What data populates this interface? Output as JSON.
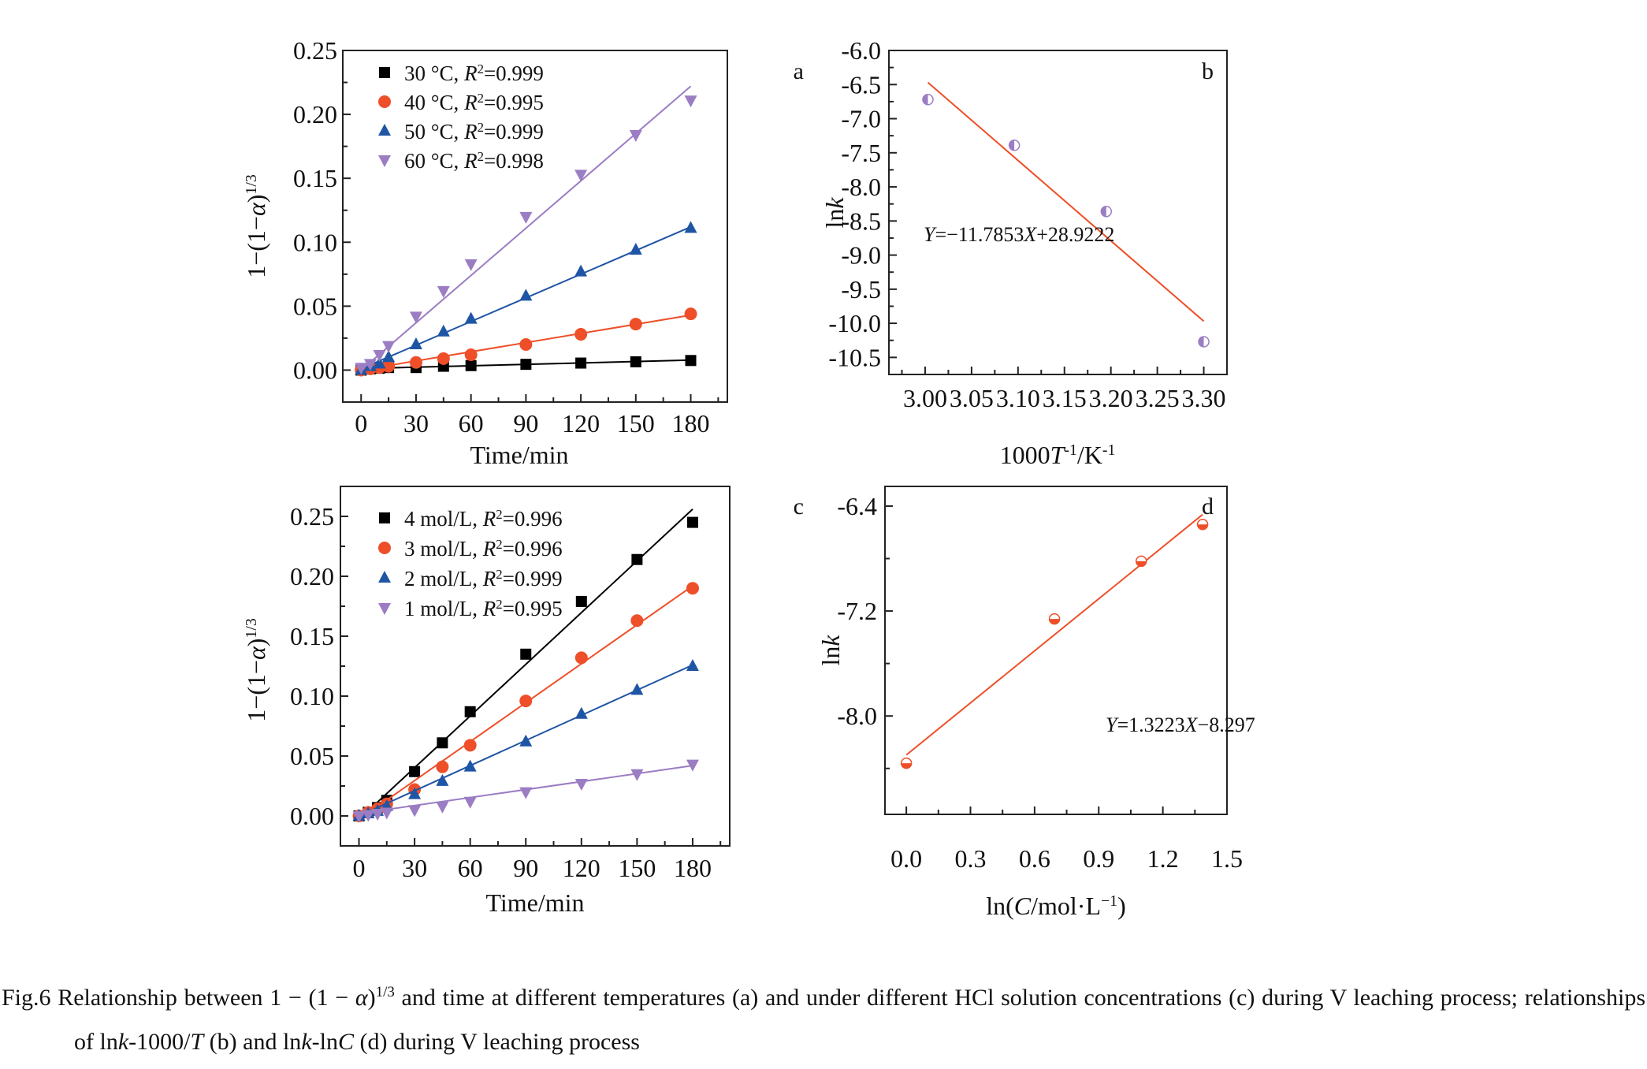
{
  "chart_data": [
    {
      "panel": "a",
      "type": "scatter",
      "xlim": [
        -10,
        200
      ],
      "ylim": [
        -0.025,
        0.25
      ],
      "xticks": [
        0,
        30,
        60,
        90,
        120,
        150,
        180
      ],
      "xtick_labels": [
        "0",
        "30",
        "60",
        "90",
        "120",
        "150",
        "180"
      ],
      "yticks": [
        0,
        0.05,
        0.1,
        0.15,
        0.2,
        0.25
      ],
      "ytick_labels": [
        "0.00",
        "0.05",
        "0.10",
        "0.15",
        "0.20",
        "0.25"
      ],
      "xlabel": [
        {
          "t": "Time/min"
        }
      ],
      "ylabel": [
        {
          "t": "1−(1−"
        },
        {
          "t": "α",
          "i": true
        },
        {
          "t": ")"
        },
        {
          "t": "1/3",
          "sup": true
        }
      ],
      "grid": false,
      "legend": "top-left",
      "x": [
        0,
        5,
        10,
        15,
        30,
        45,
        60,
        90,
        120,
        150,
        180
      ],
      "series": [
        {
          "name": [
            {
              "t": "30 °C, "
            },
            {
              "t": "R",
              "i": true
            },
            {
              "t": "2",
              "sup": true
            },
            {
              "t": "=0.999"
            }
          ],
          "marker": "square",
          "color": "#000000",
          "values": [
            0.0,
            0.001,
            0.0015,
            0.002,
            0.002,
            0.003,
            0.0035,
            0.0045,
            0.0055,
            0.0065,
            0.0075
          ],
          "fit": [
            [
              0,
              0.0012
            ],
            [
              180,
              0.0078
            ]
          ]
        },
        {
          "name": [
            {
              "t": "40 °C, "
            },
            {
              "t": "R",
              "i": true
            },
            {
              "t": "2",
              "sup": true
            },
            {
              "t": "=0.995"
            }
          ],
          "marker": "circle",
          "color": "#ee4f28",
          "values": [
            0.0,
            0.001,
            0.002,
            0.003,
            0.006,
            0.009,
            0.012,
            0.02,
            0.028,
            0.036,
            0.044
          ],
          "fit": [
            [
              0,
              0.0
            ],
            [
              180,
              0.043
            ]
          ]
        },
        {
          "name": [
            {
              "t": "50 °C, "
            },
            {
              "t": "R",
              "i": true
            },
            {
              "t": "2",
              "sup": true
            },
            {
              "t": "=0.999"
            }
          ],
          "marker": "triangle-up",
          "color": "#1f55a5",
          "values": [
            0.0,
            0.003,
            0.005,
            0.01,
            0.02,
            0.03,
            0.04,
            0.058,
            0.077,
            0.094,
            0.111
          ],
          "fit": [
            [
              0,
              0.001
            ],
            [
              180,
              0.112
            ]
          ]
        },
        {
          "name": [
            {
              "t": "60 °C, "
            },
            {
              "t": "R",
              "i": true
            },
            {
              "t": "2",
              "sup": true
            },
            {
              "t": "=0.998"
            }
          ],
          "marker": "triangle-down",
          "color": "#9b7dc3",
          "values": [
            0.002,
            0.005,
            0.012,
            0.019,
            0.042,
            0.062,
            0.083,
            0.12,
            0.153,
            0.184,
            0.211
          ],
          "fit": [
            [
              0,
              0.0
            ],
            [
              180,
              0.222
            ]
          ]
        }
      ]
    },
    {
      "panel": "b",
      "type": "scatter",
      "xlim": [
        2.961,
        3.325
      ],
      "ylim": [
        -10.75,
        -6.0
      ],
      "xticks": [
        3.0,
        3.05,
        3.1,
        3.15,
        3.2,
        3.25,
        3.3
      ],
      "xtick_labels": [
        "3.00",
        "3.05",
        "3.10",
        "3.15",
        "3.20",
        "3.25",
        "3.30"
      ],
      "yticks": [
        -6.0,
        -6.5,
        -7.0,
        -7.5,
        -8.0,
        -8.5,
        -9.0,
        -9.5,
        -10.0,
        -10.5
      ],
      "ytick_labels": [
        "-6.0",
        "-6.5",
        "-7.0",
        "-7.5",
        "-8.0",
        "-8.5",
        "-9.0",
        "-9.5",
        "-10.0",
        "-10.5"
      ],
      "xlabel": [
        {
          "t": "1000"
        },
        {
          "t": "T",
          "i": true
        },
        {
          "t": "-1",
          "sup": true
        },
        {
          "t": "/K"
        },
        {
          "t": "-1",
          "sup": true
        }
      ],
      "ylabel": [
        {
          "t": "ln"
        },
        {
          "t": "k",
          "i": true
        }
      ],
      "grid": false,
      "x": [
        3.003,
        3.096,
        3.195,
        3.3
      ],
      "series": [
        {
          "marker": "half-circle-left",
          "color": "#9b7dc3",
          "values": [
            -6.72,
            -7.39,
            -8.36,
            -10.27
          ],
          "fit_color": "#ee4f28",
          "fit_equation": {
            "slope": -11.7853,
            "intercept": 28.9222,
            "x_range": [
              3.003,
              3.3
            ]
          }
        }
      ],
      "annotation": [
        {
          "t": "Y",
          "i": true
        },
        {
          "t": "=−11.7853"
        },
        {
          "t": "X",
          "i": true
        },
        {
          "t": "+28.9222"
        }
      ]
    },
    {
      "panel": "c",
      "type": "scatter",
      "xlim": [
        -10,
        200
      ],
      "ylim": [
        -0.025,
        0.275
      ],
      "xticks": [
        0,
        30,
        60,
        90,
        120,
        150,
        180
      ],
      "xtick_labels": [
        "0",
        "30",
        "60",
        "90",
        "120",
        "150",
        "180"
      ],
      "yticks": [
        0,
        0.05,
        0.1,
        0.15,
        0.2,
        0.25
      ],
      "ytick_labels": [
        "0.00",
        "0.05",
        "0.10",
        "0.15",
        "0.20",
        "0.25"
      ],
      "xlabel": [
        {
          "t": "Time/min"
        }
      ],
      "ylabel": [
        {
          "t": "1−(1−"
        },
        {
          "t": "α",
          "i": true
        },
        {
          "t": ")"
        },
        {
          "t": "1/3",
          "sup": true
        }
      ],
      "grid": false,
      "legend": "top-left",
      "x": [
        0,
        5,
        10,
        15,
        30,
        45,
        60,
        90,
        120,
        150,
        180
      ],
      "series": [
        {
          "name": [
            {
              "t": "4 mol/L, "
            },
            {
              "t": "R",
              "i": true
            },
            {
              "t": "2",
              "sup": true
            },
            {
              "t": "=0.996"
            }
          ],
          "marker": "square",
          "color": "#000000",
          "values": [
            0.0,
            0.003,
            0.007,
            0.013,
            0.037,
            0.061,
            0.087,
            0.135,
            0.179,
            0.214,
            0.245
          ],
          "fit": [
            [
              2,
              0.0
            ],
            [
              180,
              0.256
            ]
          ]
        },
        {
          "name": [
            {
              "t": "3 mol/L, "
            },
            {
              "t": "R",
              "i": true
            },
            {
              "t": "2",
              "sup": true
            },
            {
              "t": "=0.996"
            }
          ],
          "marker": "circle",
          "color": "#ee4f28",
          "values": [
            0.0,
            0.003,
            0.006,
            0.01,
            0.022,
            0.041,
            0.059,
            0.096,
            0.132,
            0.163,
            0.19
          ],
          "fit": [
            [
              0,
              -0.003
            ],
            [
              180,
              0.192
            ]
          ]
        },
        {
          "name": [
            {
              "t": "2 mol/L, "
            },
            {
              "t": "R",
              "i": true
            },
            {
              "t": "2",
              "sup": true
            },
            {
              "t": "=0.999"
            }
          ],
          "marker": "triangle-up",
          "color": "#1f55a5",
          "values": [
            0.0,
            0.002,
            0.004,
            0.008,
            0.018,
            0.029,
            0.041,
            0.062,
            0.085,
            0.105,
            0.125
          ],
          "fit": [
            [
              0,
              0.0
            ],
            [
              180,
              0.126
            ]
          ]
        },
        {
          "name": [
            {
              "t": "1 mol/L, "
            },
            {
              "t": "R",
              "i": true
            },
            {
              "t": "2",
              "sup": true
            },
            {
              "t": "=0.995"
            }
          ],
          "marker": "triangle-down",
          "color": "#9b7dc3",
          "values": [
            0.0,
            0.001,
            0.002,
            0.003,
            0.005,
            0.008,
            0.012,
            0.02,
            0.027,
            0.035,
            0.043
          ],
          "fit": [
            [
              0,
              0.002
            ],
            [
              180,
              0.042
            ]
          ]
        }
      ]
    },
    {
      "panel": "d",
      "type": "scatter",
      "xlim": [
        -0.1,
        1.5
      ],
      "ylim": [
        -8.75,
        -6.25
      ],
      "xticks": [
        0.0,
        0.3,
        0.6,
        0.9,
        1.2,
        1.5
      ],
      "xtick_labels": [
        "0.0",
        "0.3",
        "0.6",
        "0.9",
        "1.2",
        "1.5"
      ],
      "yticks": [
        -6.4,
        -7.2,
        -8.0
      ],
      "ytick_labels": [
        "-6.4",
        "-7.2",
        "-8.0"
      ],
      "xlabel": [
        {
          "t": "ln("
        },
        {
          "t": "C",
          "i": true
        },
        {
          "t": "/mol·L"
        },
        {
          "t": "−1",
          "sup": true
        },
        {
          "t": ")"
        }
      ],
      "ylabel": [
        {
          "t": "ln"
        },
        {
          "t": "k",
          "i": true
        }
      ],
      "grid": false,
      "x": [
        0.0,
        0.693,
        1.099,
        1.386
      ],
      "series": [
        {
          "marker": "half-circle-bottom",
          "color": "#ee4f28",
          "values": [
            -8.36,
            -7.26,
            -6.82,
            -6.54
          ],
          "fit_color": "#ee4f28",
          "fit_equation": {
            "slope": 1.3223,
            "intercept": -8.297,
            "x_range": [
              0.0,
              1.386
            ]
          }
        }
      ],
      "annotation": [
        {
          "t": "Y",
          "i": true
        },
        {
          "t": "=1.3223"
        },
        {
          "t": "X",
          "i": true
        },
        {
          "t": "−8.297"
        }
      ]
    }
  ],
  "caption": [
    {
      "t": "Fig.6 Relationship between 1 − (1 − "
    },
    {
      "t": "α",
      "i": true
    },
    {
      "t": ")"
    },
    {
      "t": "1/3",
      "sup": true
    },
    {
      "t": " and time at different temperatures (a) and under different HCl solution concentrations (c) during V leaching process; relationships of ln"
    },
    {
      "t": "k",
      "i": true
    },
    {
      "t": "-1000/"
    },
    {
      "t": "T",
      "i": true
    },
    {
      "t": " (b) and ln"
    },
    {
      "t": "k",
      "i": true
    },
    {
      "t": "-ln"
    },
    {
      "t": "C",
      "i": true
    },
    {
      "t": " (d) during V leaching process"
    }
  ]
}
